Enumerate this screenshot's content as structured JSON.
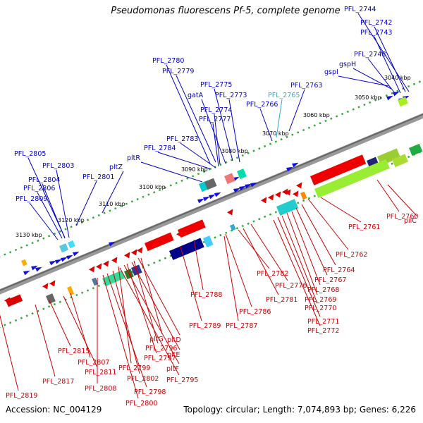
{
  "header": {
    "title": "Pseudomonas fluorescens Pf-5, complete genome"
  },
  "footer": {
    "accession": "Accession: NC_004129",
    "topology": "Topology: circular; Length: 7,074,893 bp; Genes: 6,226"
  },
  "colors": {
    "forward_label": "#0000cc",
    "reverse_label": "#cc0000",
    "special_label": "#33aacc",
    "forward_gene": "#1010dd",
    "reverse_gene": "#e00000",
    "backbone": "#888888",
    "tick_dots": "#33aa33"
  },
  "kbp_ticks": [
    {
      "label": "3040 kbp"
    },
    {
      "label": "3050 kbp"
    },
    {
      "label": "3060 kbp"
    },
    {
      "label": "3070 kbp"
    },
    {
      "label": "3080 kbp"
    },
    {
      "label": "3090 kbp"
    },
    {
      "label": "3100 kbp"
    },
    {
      "label": "3110 kbp"
    },
    {
      "label": "3120 kbp"
    },
    {
      "label": "3130 kbp"
    }
  ],
  "forward_labels": [
    "PFL_2744",
    "PFL_2742",
    "PFL_2743",
    "PFL_2748",
    "gspH",
    "gspI",
    "PFL_2763",
    "PFL_2765",
    "PFL_2766",
    "PFL_2773",
    "PFL_2775",
    "gatA",
    "PFL_2774",
    "PFL_2777",
    "PFL_2780",
    "PFL_2779",
    "PFL_2783",
    "PFL_2784",
    "pltR",
    "pltZ",
    "PFL_2801",
    "PFL_2805",
    "PFL_2803",
    "PFL_2804",
    "PFL_2806",
    "PFL_2809"
  ],
  "reverse_labels": [
    "pilC",
    "PFL_2760",
    "PFL_2761",
    "PFL_2762",
    "PFL_2764",
    "PFL_2767",
    "PFL_2768",
    "PFL_2769",
    "PFL_2770",
    "PFL_2771",
    "PFL_2772",
    "PFL_2776",
    "PFL_2781",
    "PFL_2782",
    "PFL_2786",
    "PFL_2787",
    "PFL_2788",
    "PFL_2789",
    "pltG",
    "pltD",
    "PFL_2796",
    "pltE",
    "PFL_2797",
    "pltF",
    "PFL_2799",
    "PFL_2795",
    "PFL_2802",
    "PFL_2798",
    "PFL_2800",
    "PFL_2807",
    "PFL_2808",
    "PFL_2811",
    "PFL_2815",
    "PFL_2817",
    "PFL_2819"
  ]
}
